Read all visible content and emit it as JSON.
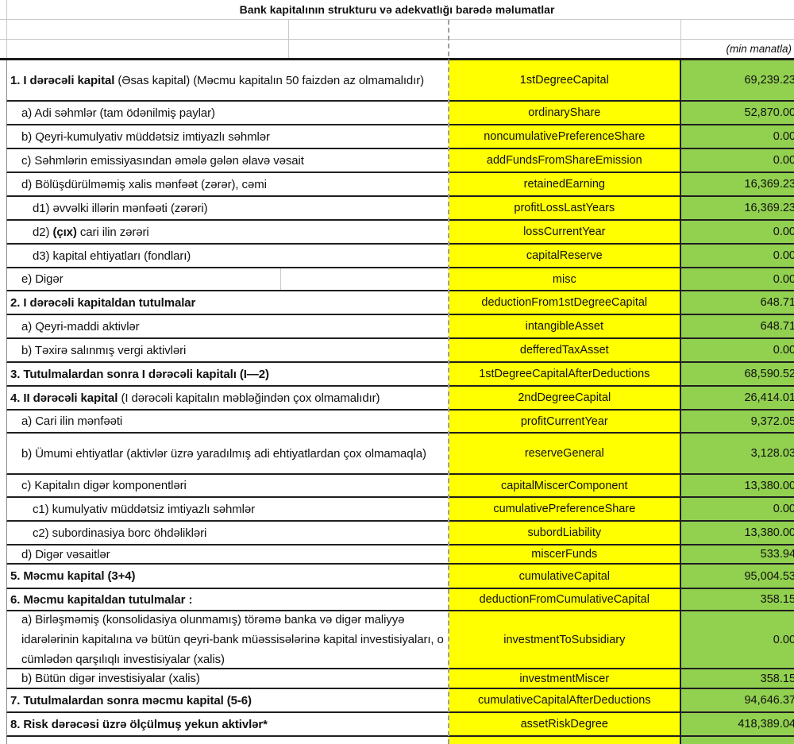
{
  "title": "Bank kapitalının strukturu və adekvatlığı barədə məlumatlar",
  "unit_note": "(min manatla)",
  "colors": {
    "code_bg": "#FFFF00",
    "value_bg": "#92D050",
    "border": "#1f1f1f"
  },
  "table": {
    "rows": [
      {
        "label_parts": [
          {
            "text": "1. I dərəcəli kapital ",
            "bold": true
          },
          {
            "text": "(Əsas kapital) (Məcmu kapitalın 50 faizdən  az olmamalıdır)",
            "bold": false
          }
        ],
        "code": "1stDegreeCapital",
        "value": "69,239.23",
        "indent": 0
      },
      {
        "label": "a) Adi səhmlər (tam ödənilmiş paylar)",
        "code": "ordinaryShare",
        "value": "52,870.00",
        "indent": 1
      },
      {
        "label": "b) Qeyri-kumulyativ müddətsiz imtiyazlı səhmlər",
        "code": "noncumulativePreferenceShare",
        "value": "0.00",
        "indent": 1
      },
      {
        "label": "c) Səhmlərin emissiyasından əmələ gələn  əlavə vəsait",
        "code": "addFundsFromShareEmission",
        "value": "0.00",
        "indent": 1
      },
      {
        "label": "d)  Bölüşdürülməmiş xalis mənfəət (zərər), cəmi",
        "code": "retainedEarning",
        "value": "16,369.23",
        "indent": 1
      },
      {
        "label": "d1) əvvəlki illərin mənfəəti (zərəri)",
        "code": "profitLossLastYears",
        "value": "16,369.23",
        "indent": 2
      },
      {
        "label_parts": [
          {
            "text": "d2) ",
            "bold": false
          },
          {
            "text": "(çıx)",
            "bold": true
          },
          {
            "text": " cari ilin zərəri",
            "bold": false
          }
        ],
        "code": "lossCurrentYear",
        "value": "0.00",
        "indent": 2
      },
      {
        "label": "d3) kapital ehtiyatları (fondları)",
        "code": "capitalReserve",
        "value": "0.00",
        "indent": 2
      },
      {
        "label": "e) Digər",
        "code": "misc",
        "value": "0.00",
        "indent": 1,
        "divider": true
      },
      {
        "label": "2. I dərəcəli kapitaldan  tutulmalar",
        "bold": true,
        "code": "deductionFrom1stDegreeCapital",
        "value": "648.71",
        "indent": 0
      },
      {
        "label": "a) Qeyri-maddi aktivlər",
        "code": "intangibleAsset",
        "value": "648.71",
        "indent": 1
      },
      {
        "label": "b) Təxirə salınmış vergi aktivləri",
        "code": "defferedTaxAsset",
        "value": "0.00",
        "indent": 1
      },
      {
        "label": "3. Tutulmalardan  sonra I dərəcəli kapitalı (I—2)",
        "bold": true,
        "code": "1stDegreeCapitalAfterDeductions",
        "value": "68,590.52",
        "indent": 0
      },
      {
        "label_parts": [
          {
            "text": "4. II dərəcəli  kapital ",
            "bold": true
          },
          {
            "text": "(I dərəcəli  kapitalın  məbləğindən çox olmamalıdır)",
            "bold": false
          }
        ],
        "code": "2ndDegreeCapital",
        "value": "26,414.01",
        "indent": 0
      },
      {
        "label": "a) Cari ilin mənfəəti",
        "code": "profitCurrentYear",
        "value": "9,372.05",
        "indent": 1
      },
      {
        "label": "b) Ümumi ehtiyatlar (aktivlər üzrə yaradılmış adi ehtiyatlardan çox olmamaqla)",
        "code": "reserveGeneral",
        "value": "3,128.03",
        "indent": 1
      },
      {
        "label": "c)  Kapitalın digər komponentləri",
        "code": "capitalMiscerComponent",
        "value": "13,380.00",
        "indent": 1
      },
      {
        "label": "c1) kumulyativ müddətsiz imtiyazlı səhmlər",
        "code": "cumulativePreferenceShare",
        "value": "0.00",
        "indent": 2
      },
      {
        "label": "c2) subordinasiya borc öhdəlikləri",
        "code": "subordLiability",
        "value": "13,380.00",
        "indent": 2
      },
      {
        "label": "d) Digər vəsaitlər",
        "code": "miscerFunds",
        "value": "533.94",
        "indent": 1
      },
      {
        "label": "5. Məcmu kapital (3+4)",
        "bold": true,
        "code": "cumulativeCapital",
        "value": "95,004.53",
        "indent": 0
      },
      {
        "label": "6. Məcmu kapitaldan tutulmalar :",
        "bold": true,
        "code": "deductionFromCumulativeCapital",
        "value": "358.15",
        "indent": 0
      },
      {
        "label": "a)   Birləşməmiş (konsolidasiya olunmamış) törəmə banka və digər maliyyə idarələrinin kapitalına və bütün qeyri-bank müəssisələrinə kapital investisiyaları, o cümlədən qarşılıqlı investisiyalar (xalis)",
        "code": "investmentToSubsidiary",
        "value": "0.00",
        "indent": 1
      },
      {
        "label": "b)   Bütün digər investisiyalar (xalis)",
        "code": "investmentMiscer",
        "value": "358.15",
        "indent": 1
      },
      {
        "label": "7. Tutulmalardan  sonra məcmu kapital (5-6)",
        "bold": true,
        "code": "cumulativeCapitalAfterDeductions",
        "value": "94,646.37",
        "indent": 0
      },
      {
        "label": "8. Risk dərəcəsi üzrə ölçülmuş  yekun aktivlər*",
        "bold": true,
        "code": "assetRiskDegree",
        "value": "418,389.04",
        "indent": 0
      },
      {
        "label": "",
        "code": "",
        "value": "",
        "indent": 0
      }
    ]
  }
}
